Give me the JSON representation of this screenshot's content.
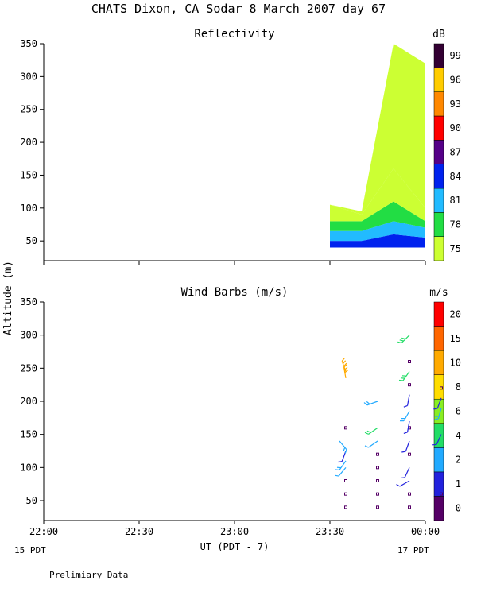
{
  "header": {
    "title": "CHATS Dixon, CA  Sodar   8 March 2007  day  67"
  },
  "footer": {
    "left_date": "15 PDT",
    "right_date": "17 PDT",
    "note": "Prelimiary Data",
    "xlabel": "UT  (PDT - 7)",
    "ylabel": "Altitude (m)"
  },
  "chart_data": [
    {
      "type": "heatmap",
      "title": "Reflectivity",
      "colorbar_unit": "dB",
      "xlabel": "UT  (PDT - 7)",
      "ylabel": "Altitude (m)",
      "x_ticks": [
        "22:00",
        "22:30",
        "23:00",
        "23:30",
        "00:00"
      ],
      "y_ticks": [
        50,
        100,
        150,
        200,
        250,
        300,
        350
      ],
      "ylim": [
        20,
        350
      ],
      "colorbar": {
        "labels": [
          "75",
          "78",
          "81",
          "84",
          "87",
          "90",
          "93",
          "96",
          "99"
        ],
        "colors": [
          "#ccff33",
          "#22dd44",
          "#22bbff",
          "#0022ee",
          "#550088",
          "#ff0000",
          "#ff8800",
          "#ffcc00",
          "#330033"
        ]
      },
      "profiles": [
        {
          "time": "23:30",
          "boundaries": [
            40,
            50,
            65,
            80,
            105,
            105
          ],
          "max_alt": 105
        },
        {
          "time": "23:40",
          "boundaries": [
            40,
            50,
            65,
            80,
            90,
            95
          ],
          "max_alt": 95
        },
        {
          "time": "23:50",
          "boundaries": [
            40,
            60,
            80,
            110,
            160,
            350
          ],
          "max_alt": 350
        },
        {
          "time": "00:00",
          "boundaries": [
            40,
            55,
            70,
            80,
            100,
            320
          ],
          "max_alt": 320
        }
      ],
      "notes": "Data present only ~23:30-00:00; levels 75 (yellow-green) dominate above ~100 m, 78 (green) core, 81 (cyan) and 84 (blue) near ground."
    },
    {
      "type": "scatter",
      "title": "Wind Barbs (m/s)",
      "colorbar_unit": "m/s",
      "x_ticks": [
        "22:00",
        "22:30",
        "23:00",
        "23:30",
        "00:00"
      ],
      "y_ticks": [
        50,
        100,
        150,
        200,
        250,
        300,
        350
      ],
      "ylim": [
        20,
        350
      ],
      "colorbar": {
        "labels": [
          "0",
          "1",
          "2",
          "4",
          "6",
          "8",
          "10",
          "15",
          "20"
        ],
        "colors": [
          "#550066",
          "#2222dd",
          "#22aaff",
          "#22dd66",
          "#88ee22",
          "#ffdd00",
          "#ffaa00",
          "#ff6600",
          "#ff0000"
        ]
      },
      "barbs": [
        {
          "time_min": 95,
          "alt": 40,
          "speed": 0,
          "dir": 0
        },
        {
          "time_min": 95,
          "alt": 60,
          "speed": 0,
          "dir": 0
        },
        {
          "time_min": 95,
          "alt": 80,
          "speed": 0,
          "dir": 0
        },
        {
          "time_min": 95,
          "alt": 100,
          "speed": 2,
          "dir": 220
        },
        {
          "time_min": 95,
          "alt": 110,
          "speed": 3,
          "dir": 215
        },
        {
          "time_min": 95,
          "alt": 125,
          "speed": 1.5,
          "dir": 200
        },
        {
          "time_min": 93,
          "alt": 140,
          "speed": 3,
          "dir": 140
        },
        {
          "time_min": 95,
          "alt": 160,
          "speed": 0,
          "dir": 0
        },
        {
          "time_min": 95,
          "alt": 235,
          "speed": 14,
          "dir": 350
        },
        {
          "time_min": 95,
          "alt": 245,
          "speed": 14,
          "dir": 340
        },
        {
          "time_min": 105,
          "alt": 40,
          "speed": 0,
          "dir": 0
        },
        {
          "time_min": 105,
          "alt": 60,
          "speed": 0,
          "dir": 0
        },
        {
          "time_min": 105,
          "alt": 80,
          "speed": 0,
          "dir": 0
        },
        {
          "time_min": 105,
          "alt": 100,
          "speed": 0,
          "dir": 0
        },
        {
          "time_min": 105,
          "alt": 120,
          "speed": 0,
          "dir": 0
        },
        {
          "time_min": 105,
          "alt": 140,
          "speed": 2.5,
          "dir": 235
        },
        {
          "time_min": 105,
          "alt": 160,
          "speed": 4,
          "dir": 235
        },
        {
          "time_min": 105,
          "alt": 200,
          "speed": 3,
          "dir": 250
        },
        {
          "time_min": 115,
          "alt": 40,
          "speed": 0,
          "dir": 0
        },
        {
          "time_min": 115,
          "alt": 60,
          "speed": 0,
          "dir": 0
        },
        {
          "time_min": 115,
          "alt": 80,
          "speed": 1.5,
          "dir": 240
        },
        {
          "time_min": 115,
          "alt": 100,
          "speed": 1.5,
          "dir": 205
        },
        {
          "time_min": 115,
          "alt": 120,
          "speed": 0,
          "dir": 0
        },
        {
          "time_min": 115,
          "alt": 140,
          "speed": 1.5,
          "dir": 200
        },
        {
          "time_min": 115,
          "alt": 160,
          "speed": 0,
          "dir": 0
        },
        {
          "time_min": 115,
          "alt": 170,
          "speed": 1.5,
          "dir": 190
        },
        {
          "time_min": 115,
          "alt": 185,
          "speed": 3,
          "dir": 210
        },
        {
          "time_min": 115,
          "alt": 210,
          "speed": 1.5,
          "dir": 190
        },
        {
          "time_min": 115,
          "alt": 225,
          "speed": 0,
          "dir": 0
        },
        {
          "time_min": 115,
          "alt": 245,
          "speed": 5,
          "dir": 215
        },
        {
          "time_min": 115,
          "alt": 260,
          "speed": 0,
          "dir": 0
        },
        {
          "time_min": 115,
          "alt": 300,
          "speed": 5,
          "dir": 225
        },
        {
          "time_min": 125,
          "alt": 40,
          "speed": 0,
          "dir": 0
        },
        {
          "time_min": 125,
          "alt": 60,
          "speed": 0,
          "dir": 0
        },
        {
          "time_min": 125,
          "alt": 150,
          "speed": 1.5,
          "dir": 205
        },
        {
          "time_min": 125,
          "alt": 190,
          "speed": 3,
          "dir": 195
        },
        {
          "time_min": 125,
          "alt": 205,
          "speed": 1.5,
          "dir": 200
        },
        {
          "time_min": 125,
          "alt": 220,
          "speed": 0,
          "dir": 0
        }
      ]
    }
  ]
}
